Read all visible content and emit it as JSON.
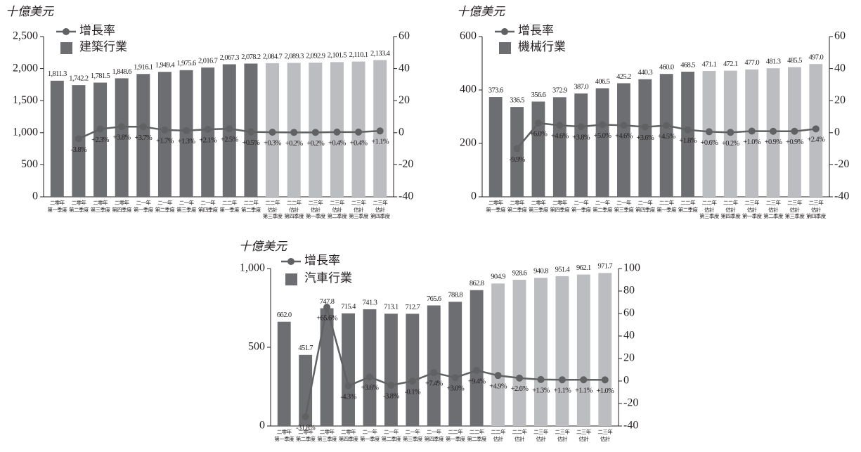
{
  "chart_data": [
    {
      "type": "combo",
      "unit_label": "十億美元",
      "categories": [
        "二零年\n第一季度",
        "二零年\n第二季度",
        "二零年\n第三季度",
        "二零年\n第四季度",
        "二一年\n第一季度",
        "二一年\n第二季度",
        "二一年\n第三季度",
        "二一年\n第四季度",
        "二二年\n第一季度",
        "二二年\n第二季度",
        "二二年\n估計\n第三季度",
        "二二年\n估計\n第四季度",
        "二三年\n估計\n第一季度",
        "二三年\n估計\n第二季度",
        "二三年\n估計\n第三季度",
        "二三年\n估計\n第四季度"
      ],
      "ylim": [
        0,
        2500
      ],
      "yticks": [
        0,
        500,
        {
          "value": 1000,
          "label": "1,000"
        },
        {
          "value": 1500,
          "label": "1,500"
        },
        {
          "value": 2000,
          "label": "2,000"
        },
        {
          "value": 2500,
          "label": "2,500"
        }
      ],
      "y2lim": [
        -40,
        60
      ],
      "y2ticks": [
        -40,
        -20,
        0,
        20,
        40,
        60
      ],
      "series": [
        {
          "name": "增長率",
          "type": "line",
          "axis": "y2",
          "color": "#606163",
          "values": [
            null,
            -3.8,
            2.3,
            3.8,
            3.7,
            1.7,
            1.3,
            2.1,
            2.5,
            0.5,
            0.3,
            0.2,
            0.2,
            0.4,
            0.4,
            1.1
          ],
          "value_labels": [
            null,
            "-3.8%",
            "+2.3%",
            "+3.8%",
            "+3.7%",
            "+1.7%",
            "+1.3%",
            "+2.1%",
            "+2.5%",
            "+0.5%",
            "+0.3%",
            "+0.2%",
            "+0.2%",
            "+0.4%",
            "+0.4%",
            "+1.1%"
          ]
        },
        {
          "name": "建築行業",
          "type": "bar",
          "color": "#6d6e71",
          "colors": [
            "#6d6e71",
            "#6d6e71",
            "#6d6e71",
            "#6d6e71",
            "#6d6e71",
            "#6d6e71",
            "#6d6e71",
            "#6d6e71",
            "#6d6e71",
            "#6d6e71",
            "#bcbdc0",
            "#bcbdc0",
            "#bcbdc0",
            "#bcbdc0",
            "#bcbdc0",
            "#bcbdc0"
          ],
          "values": [
            1811.3,
            1742.2,
            1781.5,
            1848.6,
            1916.1,
            1949.4,
            1975.6,
            2016.7,
            2067.3,
            2078.2,
            2084.7,
            2089.3,
            2092.9,
            2101.5,
            2110.1,
            2133.4
          ],
          "value_labels": [
            "1,811.3",
            "1,742.2",
            "1,781.5",
            "1,848.6",
            "1,916.1",
            "1,949.4",
            "1,975.6",
            "2,016.7",
            "2,067.3",
            "2,078.2",
            "2,084.7",
            "2,089.3",
            "2,092.9",
            "2,101.5",
            "2,110.1",
            "2,133.4"
          ]
        }
      ]
    },
    {
      "type": "combo",
      "unit_label": "十億美元",
      "categories": [
        "二零年\n第一季度",
        "二零年\n第二季度",
        "二零年\n第三季度",
        "二零年\n第四季度",
        "二一年\n第一季度",
        "二一年\n第二季度",
        "二一年\n第三季度",
        "二一年\n第四季度",
        "二二年\n第一季度",
        "二二年\n第二季度",
        "二二年\n估計\n第三季度",
        "二二年\n估計\n第四季度",
        "二三年\n估計\n第一季度",
        "二三年\n估計\n第二季度",
        "二三年\n估計\n第三季度",
        "二三年\n估計\n第四季度"
      ],
      "ylim": [
        0,
        600
      ],
      "yticks": [
        0,
        200,
        400,
        600
      ],
      "y2lim": [
        -40,
        60
      ],
      "y2ticks": [
        -40,
        -20,
        0,
        20,
        40,
        60
      ],
      "series": [
        {
          "name": "增長率",
          "type": "line",
          "axis": "y2",
          "color": "#606163",
          "values": [
            null,
            -9.9,
            6.0,
            4.6,
            3.8,
            5.0,
            4.6,
            3.6,
            4.5,
            1.8,
            0.6,
            0.2,
            1.0,
            0.9,
            0.9,
            2.4
          ],
          "value_labels": [
            null,
            "-9.9%",
            "+6.0%",
            "+4.6%",
            "+3.8%",
            "+5.0%",
            "+4.6%",
            "+3.6%",
            "+4.5%",
            "+1.8%",
            "+0.6%",
            "+0.2%",
            "+1.0%",
            "+0.9%",
            "+0.9%",
            "+2.4%"
          ]
        },
        {
          "name": "機械行業",
          "type": "bar",
          "color": "#6d6e71",
          "colors": [
            "#6d6e71",
            "#6d6e71",
            "#6d6e71",
            "#6d6e71",
            "#6d6e71",
            "#6d6e71",
            "#6d6e71",
            "#6d6e71",
            "#6d6e71",
            "#6d6e71",
            "#bcbdc0",
            "#bcbdc0",
            "#bcbdc0",
            "#bcbdc0",
            "#bcbdc0",
            "#bcbdc0"
          ],
          "values": [
            373.6,
            336.5,
            356.6,
            372.9,
            387.0,
            406.5,
            425.2,
            440.3,
            460.0,
            468.5,
            471.1,
            472.1,
            477.0,
            481.3,
            485.5,
            497.0
          ],
          "value_labels": [
            "373.6",
            "336.5",
            "356.6",
            "372.9",
            "387.0",
            "406.5",
            "425.2",
            "440.3",
            "460.0",
            "468.5",
            "471.1",
            "472.1",
            "477.0",
            "481.3",
            "485.5",
            "497.0"
          ]
        }
      ]
    },
    {
      "type": "combo",
      "unit_label": "十億美元",
      "categories": [
        "二零年\n第一季度",
        "二零年\n第二季度",
        "二零年\n第三季度",
        "二零年\n第四季度",
        "二一年\n第一季度",
        "二一年\n第二季度",
        "二一年\n第三季度",
        "二一年\n第四季度",
        "二二年\n第一季度",
        "二二年\n第二季度",
        "二二年\n估計",
        "二二年\n估計",
        "二三年\n估計",
        "二三年\n估計",
        "二三年\n估計",
        "二三年\n估計"
      ],
      "ylim": [
        0,
        1000
      ],
      "yticks": [
        0,
        500,
        {
          "value": 1000,
          "label": "1,000"
        }
      ],
      "y2lim": [
        -40,
        100
      ],
      "y2ticks": [
        -40,
        -20,
        0,
        20,
        40,
        60,
        80,
        100
      ],
      "series": [
        {
          "name": "增長率",
          "type": "line",
          "axis": "y2",
          "color": "#606163",
          "values": [
            null,
            -31.8,
            65.6,
            -4.3,
            3.6,
            -3.8,
            -0.1,
            7.4,
            3.0,
            9.4,
            4.9,
            2.6,
            1.3,
            1.1,
            1.1,
            1.0
          ],
          "value_labels": [
            null,
            "-31.8%",
            "+65.6%",
            "-4.3%",
            "+3.6%",
            "-3.8%",
            "-0.1%",
            "+7.4%",
            "+3.0%",
            "+9.4%",
            "+4.9%",
            "+2.6%",
            "+1.3%",
            "+1.1%",
            "+1.1%",
            "+1.0%"
          ]
        },
        {
          "name": "汽車行業",
          "type": "bar",
          "color": "#6d6e71",
          "colors": [
            "#6d6e71",
            "#6d6e71",
            "#6d6e71",
            "#6d6e71",
            "#6d6e71",
            "#6d6e71",
            "#6d6e71",
            "#6d6e71",
            "#6d6e71",
            "#6d6e71",
            "#bcbdc0",
            "#bcbdc0",
            "#bcbdc0",
            "#bcbdc0",
            "#bcbdc0",
            "#bcbdc0"
          ],
          "values": [
            662.0,
            451.7,
            747.8,
            715.4,
            741.3,
            713.1,
            712.7,
            765.6,
            788.8,
            862.8,
            904.9,
            928.6,
            940.8,
            951.4,
            962.1,
            971.7
          ],
          "value_labels": [
            "662.0",
            "451.7",
            "747.8",
            "715.4",
            "741.3",
            "713.1",
            "712.7",
            "765.6",
            "788.8",
            "862.8",
            "904.9",
            "928.6",
            "940.8",
            "951.4",
            "962.1",
            "971.7"
          ]
        }
      ]
    }
  ]
}
